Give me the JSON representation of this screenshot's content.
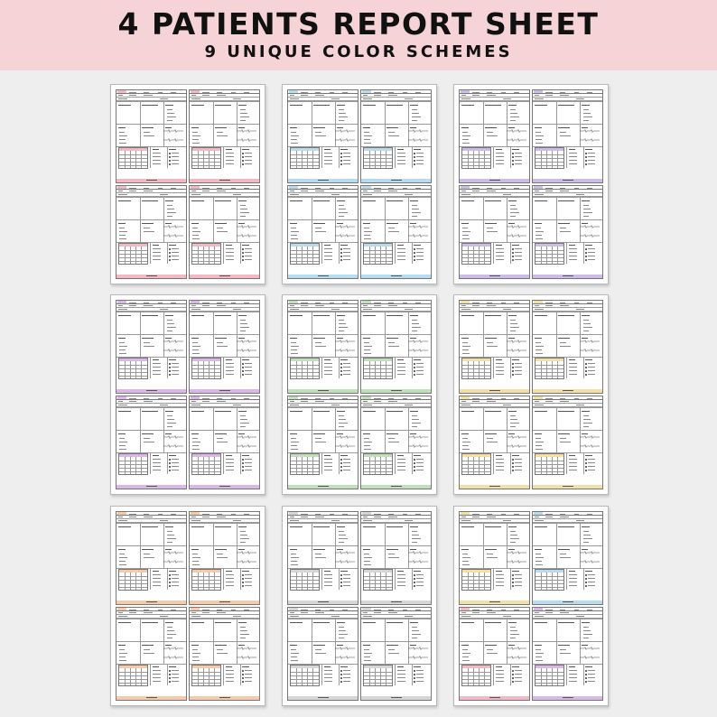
{
  "banner": {
    "title": "4 PATIENTS REPORT SHEET",
    "subtitle": "9 UNIQUE COLOR SCHEMES"
  },
  "sheets": [
    {
      "scheme": "pink",
      "accent": "#f3b8c2"
    },
    {
      "scheme": "blue",
      "accent": "#b8dcef"
    },
    {
      "scheme": "lavender",
      "accent": "#cdbde6"
    },
    {
      "scheme": "purple",
      "accent": "#dcb6e8"
    },
    {
      "scheme": "green",
      "accent": "#bfe0b8"
    },
    {
      "scheme": "yellow",
      "accent": "#f4dfa4"
    },
    {
      "scheme": "peach",
      "accent": "#f7c9a8"
    },
    {
      "scheme": "gray",
      "accent": "#d6d6d6"
    },
    {
      "scheme": "rainbow",
      "accent": "#f4dfa4",
      "accents": [
        "#f4dfa4",
        "#b8dcef",
        "#f3b8c2",
        "#dcb6e8"
      ]
    }
  ]
}
